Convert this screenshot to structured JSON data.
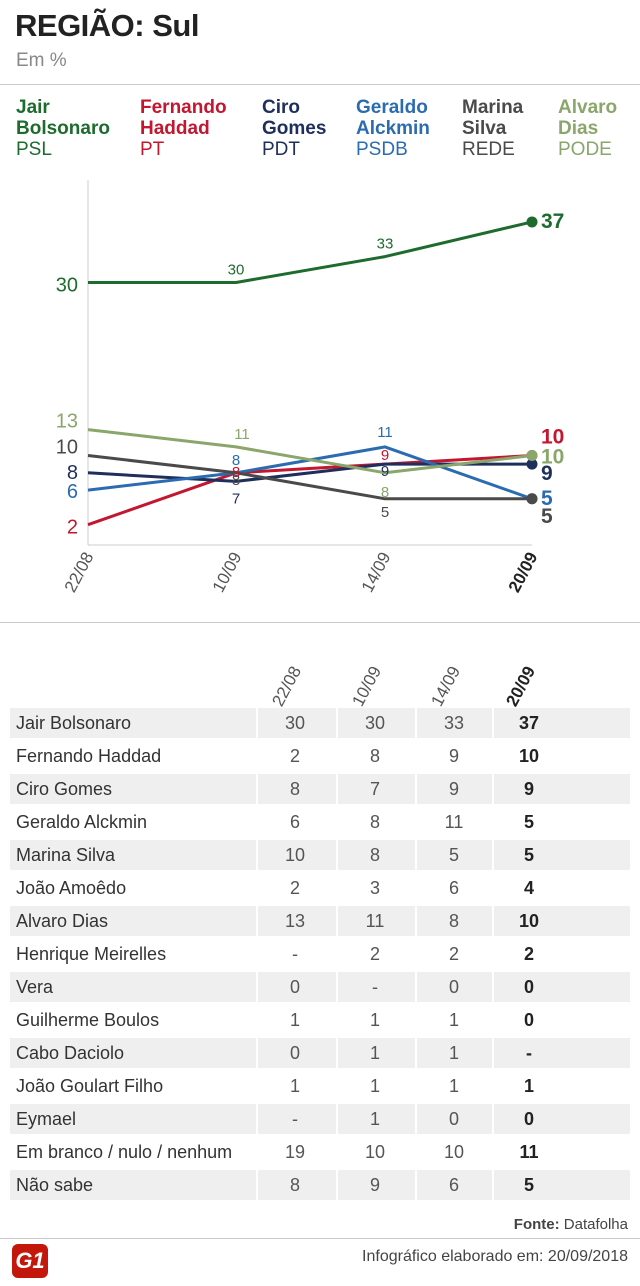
{
  "header": {
    "title": "REGIÃO: Sul",
    "subtitle": "Em %"
  },
  "legend": [
    {
      "name": "Jair Bolsonaro",
      "party": "PSL",
      "color": "#1e6b2e"
    },
    {
      "name": "Fernando Haddad",
      "party": "PT",
      "color": "#c3162f"
    },
    {
      "name": "Ciro Gomes",
      "party": "PDT",
      "color": "#1f2f5c"
    },
    {
      "name": "Geraldo Alckmin",
      "party": "PSDB",
      "color": "#2b6cb0"
    },
    {
      "name": "Marina Silva",
      "party": "REDE",
      "color": "#4a4a4a"
    },
    {
      "name": "Alvaro Dias",
      "party": "PODE",
      "color": "#8aa66b"
    }
  ],
  "chart_data": {
    "type": "line",
    "x": [
      "22/08",
      "10/09",
      "14/09",
      "20/09"
    ],
    "ylim": [
      0,
      40
    ],
    "series": [
      {
        "name": "Jair Bolsonaro",
        "color": "#1e6b2e",
        "values": [
          30,
          30,
          33,
          37
        ]
      },
      {
        "name": "Fernando Haddad",
        "color": "#c3162f",
        "values": [
          2,
          8,
          9,
          10
        ]
      },
      {
        "name": "Ciro Gomes",
        "color": "#1f2f5c",
        "values": [
          8,
          7,
          9,
          9
        ]
      },
      {
        "name": "Geraldo Alckmin",
        "color": "#2b6cb0",
        "values": [
          6,
          8,
          11,
          5
        ]
      },
      {
        "name": "Marina Silva",
        "color": "#4a4a4a",
        "values": [
          10,
          8,
          5,
          5
        ]
      },
      {
        "name": "Alvaro Dias",
        "color": "#8aa66b",
        "values": [
          13,
          11,
          8,
          10
        ]
      }
    ]
  },
  "table": {
    "headers": [
      "22/08",
      "10/09",
      "14/09",
      "20/09"
    ],
    "rows": [
      {
        "name": "Jair Bolsonaro",
        "values": [
          "30",
          "30",
          "33",
          "37"
        ]
      },
      {
        "name": "Fernando Haddad",
        "values": [
          "2",
          "8",
          "9",
          "10"
        ]
      },
      {
        "name": "Ciro Gomes",
        "values": [
          "8",
          "7",
          "9",
          "9"
        ]
      },
      {
        "name": "Geraldo Alckmin",
        "values": [
          "6",
          "8",
          "11",
          "5"
        ]
      },
      {
        "name": "Marina Silva",
        "values": [
          "10",
          "8",
          "5",
          "5"
        ]
      },
      {
        "name": "João Amoêdo",
        "values": [
          "2",
          "3",
          "6",
          "4"
        ]
      },
      {
        "name": "Alvaro Dias",
        "values": [
          "13",
          "11",
          "8",
          "10"
        ]
      },
      {
        "name": "Henrique Meirelles",
        "values": [
          "-",
          "2",
          "2",
          "2"
        ]
      },
      {
        "name": "Vera",
        "values": [
          "0",
          "-",
          "0",
          "0"
        ]
      },
      {
        "name": "Guilherme Boulos",
        "values": [
          "1",
          "1",
          "1",
          "0"
        ]
      },
      {
        "name": "Cabo Daciolo",
        "values": [
          "0",
          "1",
          "1",
          "-"
        ]
      },
      {
        "name": "João Goulart Filho",
        "values": [
          "1",
          "1",
          "1",
          "1"
        ]
      },
      {
        "name": "Eymael",
        "values": [
          "-",
          "1",
          "0",
          "0"
        ]
      },
      {
        "name": "Em branco / nulo / nenhum",
        "values": [
          "19",
          "10",
          "10",
          "11"
        ]
      },
      {
        "name": "Não sabe",
        "values": [
          "8",
          "9",
          "6",
          "5"
        ]
      }
    ]
  },
  "footer": {
    "source": "Fonte: Datafolha",
    "credit": "Infográfico elaborado em: 20/09/2018",
    "logo": "G1"
  }
}
